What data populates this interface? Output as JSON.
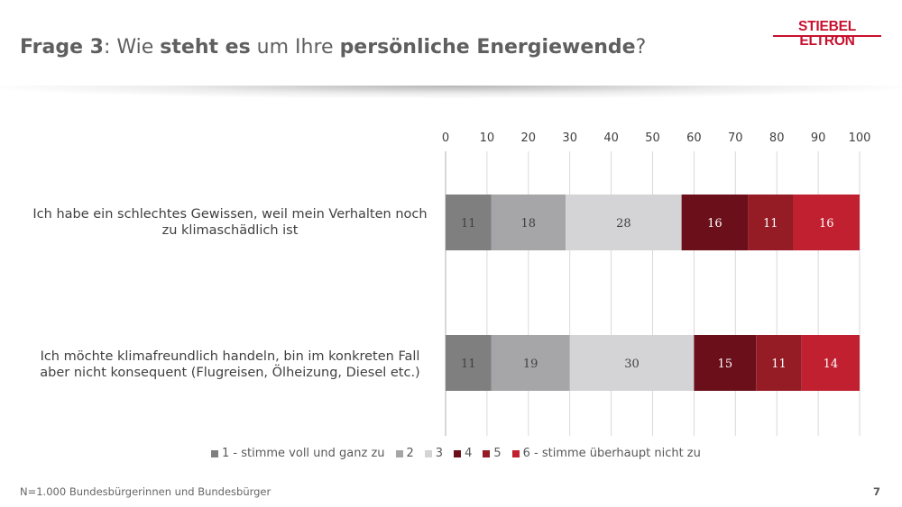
{
  "header": {
    "title_parts": [
      {
        "text": "Frage 3",
        "bold": true
      },
      {
        "text": ": Wie ",
        "bold": false
      },
      {
        "text": "steht es",
        "bold": true
      },
      {
        "text": " um Ihre ",
        "bold": false
      },
      {
        "text": "persönliche Energiewende",
        "bold": true
      },
      {
        "text": "?",
        "bold": false
      }
    ],
    "logo_text": "STIEBEL ELTRON"
  },
  "chart_data": {
    "type": "bar",
    "orientation": "horizontal",
    "stacked": true,
    "xlim": [
      0,
      100
    ],
    "xticks": [
      "0",
      "10",
      "20",
      "30",
      "40",
      "50",
      "60",
      "70",
      "80",
      "90",
      "100"
    ],
    "grid": true,
    "legend_position": "bottom",
    "categories": [
      "Ich habe ein schlechtes Gewissen, weil mein Verhalten noch zu klimaschädlich ist",
      "Ich möchte klimafreundlich handeln, bin im konkreten Fall aber nicht konsequent  (Flugreisen, Ölheizung, Diesel etc.)"
    ],
    "category_lines": [
      [
        "Ich habe ein schlechtes Gewissen, weil mein Verhalten noch",
        "zu klimaschädlich ist"
      ],
      [
        "Ich möchte klimafreundlich handeln, bin im konkreten Fall",
        "aber nicht konsequent  (Flugreisen, Ölheizung, Diesel etc.)"
      ]
    ],
    "series": [
      {
        "name": "1 - stimme voll und ganz zu",
        "color": "#7f7f80",
        "values": [
          11,
          11
        ]
      },
      {
        "name": "2",
        "color": "#a6a6a8",
        "values": [
          18,
          19
        ]
      },
      {
        "name": "3",
        "color": "#d4d4d6",
        "values": [
          28,
          30
        ]
      },
      {
        "name": "4",
        "color": "#6b0f1a",
        "values": [
          16,
          15
        ]
      },
      {
        "name": "5",
        "color": "#951b24",
        "values": [
          11,
          11
        ]
      },
      {
        "name": "6 - stimme überhaupt nicht zu",
        "color": "#c0202f",
        "values": [
          16,
          14
        ]
      }
    ]
  },
  "footer": {
    "note": "N=1.000 Bundesbürgerinnen und Bundesbürger",
    "page_number": "7"
  }
}
